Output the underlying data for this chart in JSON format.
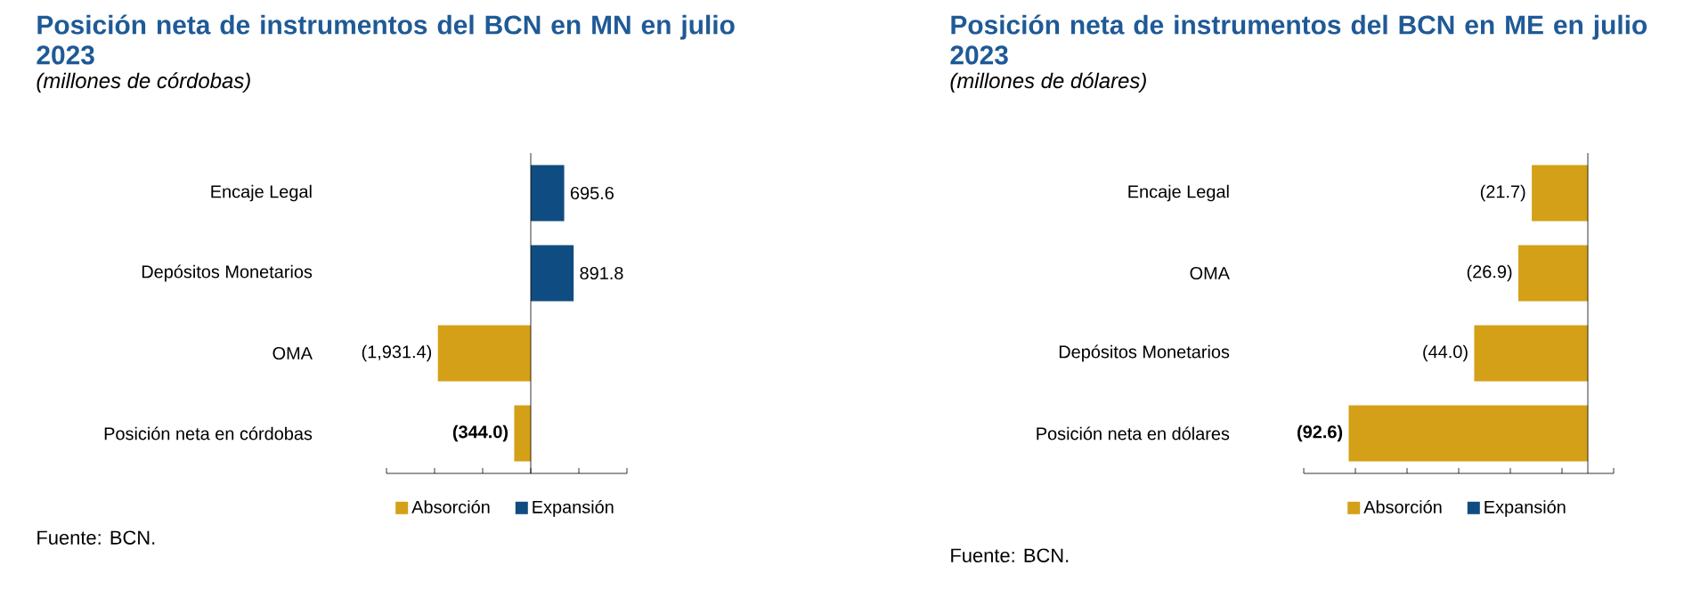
{
  "chart_data": [
    {
      "type": "bar",
      "orientation": "horizontal",
      "title": "Posición neta de instrumentos del BCN en MN en julio 2023",
      "subtitle": "(millones de córdobas)",
      "categories": [
        "Encaje Legal",
        "Depósitos Monetarios",
        "OMA",
        "Posición neta en córdobas"
      ],
      "series": [
        {
          "name": "Absorción",
          "color": "#d4a017",
          "values": [
            null,
            null,
            -1931.4,
            -344.0
          ],
          "value_labels": [
            null,
            null,
            "(1,931.4)",
            "(344.0)"
          ]
        },
        {
          "name": "Expansión",
          "color": "#0f4c81",
          "values": [
            695.6,
            891.8,
            null,
            null
          ],
          "value_labels": [
            "695.6",
            "891.8",
            null,
            null
          ]
        }
      ],
      "xlim": [
        -3000,
        2000
      ],
      "xticks": [
        {
          "value": -3000,
          "label": null
        },
        {
          "value": -2000,
          "label": null
        },
        {
          "value": -1000,
          "label": null
        },
        {
          "value": 0,
          "label": null
        },
        {
          "value": 1000,
          "label": null
        },
        {
          "value": 2000,
          "label": null
        }
      ],
      "tick_labels": "y",
      "legend": "bottom",
      "annotations": [
        "Fuente: BCN."
      ]
    },
    {
      "type": "bar",
      "orientation": "horizontal",
      "title": "Posición neta de instrumentos del BCN en ME en julio 2023",
      "subtitle": "(millones de dólares)",
      "categories": [
        "Encaje Legal",
        "OMA",
        "Depósitos Monetarios",
        "Posición neta en dólares"
      ],
      "series": [
        {
          "name": "Absorción",
          "color": "#d4a017",
          "values": [
            -21.7,
            -26.9,
            -44.0,
            -92.6
          ],
          "value_labels": [
            "(21.7)",
            "(26.9)",
            "(44.0)",
            "(92.6)"
          ]
        },
        {
          "name": "Expansión",
          "color": "#0f4c81",
          "values": [
            null,
            null,
            null,
            null
          ]
        }
      ],
      "xlim": [
        -110,
        10
      ],
      "xticks": [
        {
          "value": -110,
          "label": null
        },
        {
          "value": -90,
          "label": null
        },
        {
          "value": -70,
          "label": null
        },
        {
          "value": -50,
          "label": null
        },
        {
          "value": -30,
          "label": null
        },
        {
          "value": -10,
          "label": null
        },
        {
          "value": 10,
          "label": null
        }
      ],
      "tick_labels": "y",
      "legend": "bottom",
      "annotations": [
        "Fuente: BCN."
      ]
    }
  ]
}
